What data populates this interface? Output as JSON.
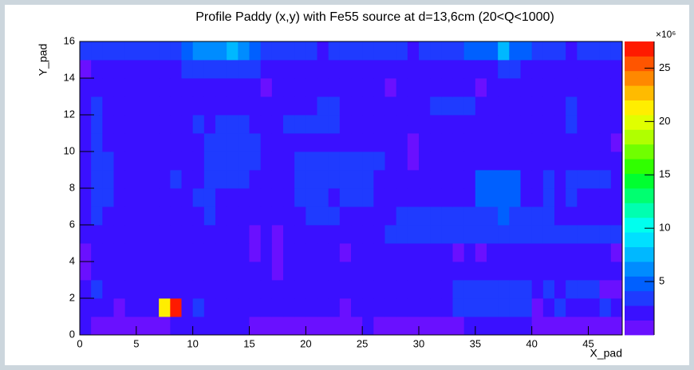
{
  "chart_data": {
    "type": "heatmap",
    "title": "Profile Paddy (x,y) with Fe55 source at d=13,6cm (20<Q<1000)",
    "xlabel": "X_pad",
    "ylabel": "Y_pad",
    "xlim": [
      0,
      48
    ],
    "ylim": [
      0,
      16
    ],
    "xticks": [
      0,
      5,
      10,
      15,
      20,
      25,
      30,
      35,
      40,
      45
    ],
    "yticks": [
      0,
      2,
      4,
      6,
      8,
      10,
      12,
      14,
      16
    ],
    "zlim": [
      0,
      27.5
    ],
    "zticks": [
      5,
      10,
      15,
      20,
      25
    ],
    "z_multiplier": "×10⁶",
    "colors": [
      "#6a10ff",
      "#3a10ff",
      "#1f3bff",
      "#0060ff",
      "#008cff",
      "#00b8ff",
      "#00e0ff",
      "#00ffee",
      "#00ffb0",
      "#00ff70",
      "#00ff30",
      "#30ff00",
      "#70ff00",
      "#b0ff00",
      "#e0ff00",
      "#ffee00",
      "#ffbb00",
      "#ff8800",
      "#ff5500",
      "#ff1a00"
    ],
    "z": [
      [
        2,
        1,
        1,
        1,
        1,
        1,
        1,
        1,
        2,
        2,
        2,
        2,
        2,
        2,
        2,
        1,
        1,
        1,
        1,
        1,
        1,
        1,
        1,
        1,
        1,
        2,
        1,
        1,
        1,
        1,
        1,
        1,
        1,
        1,
        2,
        2,
        2,
        2,
        2,
        2,
        1,
        1,
        1,
        1,
        1,
        1,
        1,
        1
      ],
      [
        2,
        2,
        2,
        1,
        2,
        2,
        2,
        21,
        27,
        2,
        3,
        2,
        2,
        2,
        2,
        2,
        2,
        2,
        2,
        2,
        2,
        2,
        2,
        1,
        2,
        2,
        2,
        2,
        2,
        2,
        2,
        2,
        2,
        3,
        3,
        3,
        3,
        3,
        3,
        3,
        1,
        2,
        3,
        2,
        2,
        2,
        3,
        2
      ],
      [
        2,
        3,
        2,
        2,
        2,
        2,
        2,
        2,
        2,
        2,
        2,
        2,
        2,
        2,
        2,
        2,
        2,
        2,
        2,
        2,
        2,
        2,
        2,
        2,
        2,
        2,
        2,
        2,
        2,
        2,
        2,
        2,
        2,
        3,
        3,
        3,
        3,
        3,
        3,
        3,
        2,
        3,
        2,
        3,
        3,
        3,
        1,
        1
      ],
      [
        1,
        2,
        2,
        2,
        2,
        2,
        2,
        2,
        2,
        2,
        2,
        2,
        2,
        2,
        2,
        2,
        2,
        1,
        2,
        2,
        2,
        2,
        2,
        2,
        2,
        2,
        2,
        2,
        2,
        2,
        2,
        2,
        2,
        2,
        2,
        2,
        2,
        2,
        2,
        2,
        2,
        2,
        2,
        2,
        2,
        2,
        2,
        2
      ],
      [
        1,
        2,
        2,
        2,
        2,
        2,
        2,
        2,
        2,
        2,
        2,
        2,
        2,
        2,
        2,
        1,
        2,
        1,
        2,
        2,
        2,
        2,
        2,
        1,
        2,
        2,
        2,
        2,
        2,
        2,
        2,
        2,
        2,
        1,
        2,
        1,
        2,
        2,
        2,
        2,
        2,
        2,
        2,
        2,
        2,
        2,
        2,
        1
      ],
      [
        2,
        2,
        2,
        2,
        2,
        2,
        2,
        2,
        2,
        2,
        2,
        2,
        2,
        2,
        2,
        1,
        2,
        1,
        2,
        2,
        2,
        2,
        2,
        2,
        2,
        2,
        2,
        3,
        3,
        3,
        3,
        3,
        3,
        3,
        3,
        3,
        3,
        3,
        3,
        3,
        3,
        3,
        3,
        3,
        3,
        3,
        3,
        3
      ],
      [
        2,
        3,
        2,
        2,
        2,
        2,
        2,
        2,
        2,
        2,
        2,
        3,
        2,
        2,
        2,
        2,
        2,
        2,
        2,
        2,
        3,
        3,
        3,
        2,
        2,
        2,
        2,
        2,
        3,
        3,
        3,
        3,
        3,
        3,
        3,
        3,
        3,
        4.5,
        3,
        3,
        3,
        3,
        2,
        2,
        2,
        2,
        2,
        2
      ],
      [
        2,
        3,
        3,
        2,
        2,
        2,
        2,
        2,
        2,
        2,
        3,
        3,
        2,
        2,
        2,
        2,
        2,
        2,
        2,
        3,
        3,
        3,
        2,
        3,
        3,
        3,
        2,
        2,
        2,
        2,
        2,
        2,
        2,
        2,
        2,
        4.5,
        4.5,
        4.5,
        4.5,
        2,
        2,
        3,
        2,
        3,
        2,
        2,
        2,
        2
      ],
      [
        2,
        3,
        3,
        2,
        2,
        2,
        2,
        2,
        3,
        2,
        2,
        3,
        3,
        3,
        3,
        2,
        2,
        2,
        2,
        3,
        3,
        3,
        3,
        3,
        3,
        3,
        2,
        2,
        2,
        2,
        2,
        2,
        2,
        2,
        2,
        4.5,
        4.5,
        4.5,
        4.5,
        2,
        2,
        3,
        2,
        3,
        3,
        3,
        3,
        2
      ],
      [
        2,
        3,
        3,
        2,
        2,
        2,
        2,
        2,
        2,
        2,
        2,
        3,
        3,
        3,
        3,
        3,
        2,
        2,
        2,
        3,
        3,
        3,
        3,
        3,
        3,
        3,
        3,
        2,
        2,
        1,
        2,
        2,
        2,
        2,
        2,
        2,
        2,
        2,
        2,
        2,
        2,
        2,
        2,
        2,
        2,
        2,
        2,
        2
      ],
      [
        2,
        3,
        2,
        2,
        2,
        2,
        2,
        2,
        2,
        2,
        2,
        3,
        3,
        3,
        3,
        3,
        2,
        2,
        2,
        2,
        2,
        2,
        2,
        2,
        2,
        2,
        2,
        2,
        2,
        1,
        2,
        2,
        2,
        2,
        2,
        2,
        2,
        2,
        2,
        2,
        2,
        2,
        2,
        2,
        2,
        2,
        2,
        1
      ],
      [
        2,
        3,
        2,
        2,
        2,
        2,
        2,
        2,
        2,
        2,
        3,
        2,
        3,
        3,
        3,
        2,
        2,
        2,
        3,
        3,
        3,
        3,
        3,
        2,
        2,
        2,
        2,
        2,
        2,
        2,
        2,
        2,
        2,
        2,
        2,
        2,
        2,
        2,
        2,
        2,
        2,
        2,
        2,
        3,
        2,
        2,
        2,
        2
      ],
      [
        2,
        3,
        2,
        2,
        2,
        2,
        2,
        2,
        2,
        2,
        2,
        2,
        2,
        2,
        2,
        2,
        2,
        2,
        2,
        2,
        2,
        3,
        3,
        2,
        2,
        2,
        2,
        2,
        2,
        2,
        2,
        3,
        3,
        3,
        3,
        2,
        2,
        2,
        2,
        2,
        2,
        2,
        2,
        3,
        2,
        2,
        2,
        2
      ],
      [
        2,
        2,
        2,
        2,
        2,
        2,
        2,
        2,
        2,
        2,
        2,
        2,
        2,
        2,
        2,
        2,
        1,
        2,
        2,
        2,
        2,
        2,
        2,
        2,
        2,
        2,
        2,
        1,
        2,
        2,
        2,
        2,
        2,
        2,
        2,
        1,
        2,
        2,
        2,
        2,
        2,
        2,
        2,
        2,
        2,
        2,
        2,
        2
      ],
      [
        1,
        2,
        2,
        2,
        2,
        2,
        2,
        2,
        2,
        3,
        3,
        3,
        3,
        3,
        3,
        3,
        2,
        2,
        2,
        2,
        2,
        2,
        2,
        2,
        2,
        2,
        2,
        2,
        2,
        2,
        2,
        2,
        2,
        2,
        2,
        2,
        2,
        3,
        3,
        2,
        2,
        2,
        2,
        2,
        2,
        2,
        2,
        2
      ],
      [
        3,
        3,
        3,
        3,
        3,
        3,
        3,
        3,
        3,
        4.5,
        5.8,
        5.8,
        5.8,
        7,
        5.8,
        4.5,
        3,
        3,
        3,
        3,
        3,
        2,
        3,
        3,
        3,
        3,
        3,
        3,
        3,
        2,
        3,
        3,
        3,
        3,
        4.5,
        4.5,
        4.5,
        7,
        4.5,
        4.5,
        3,
        3,
        3,
        2,
        3,
        3,
        3,
        3
      ]
    ]
  }
}
